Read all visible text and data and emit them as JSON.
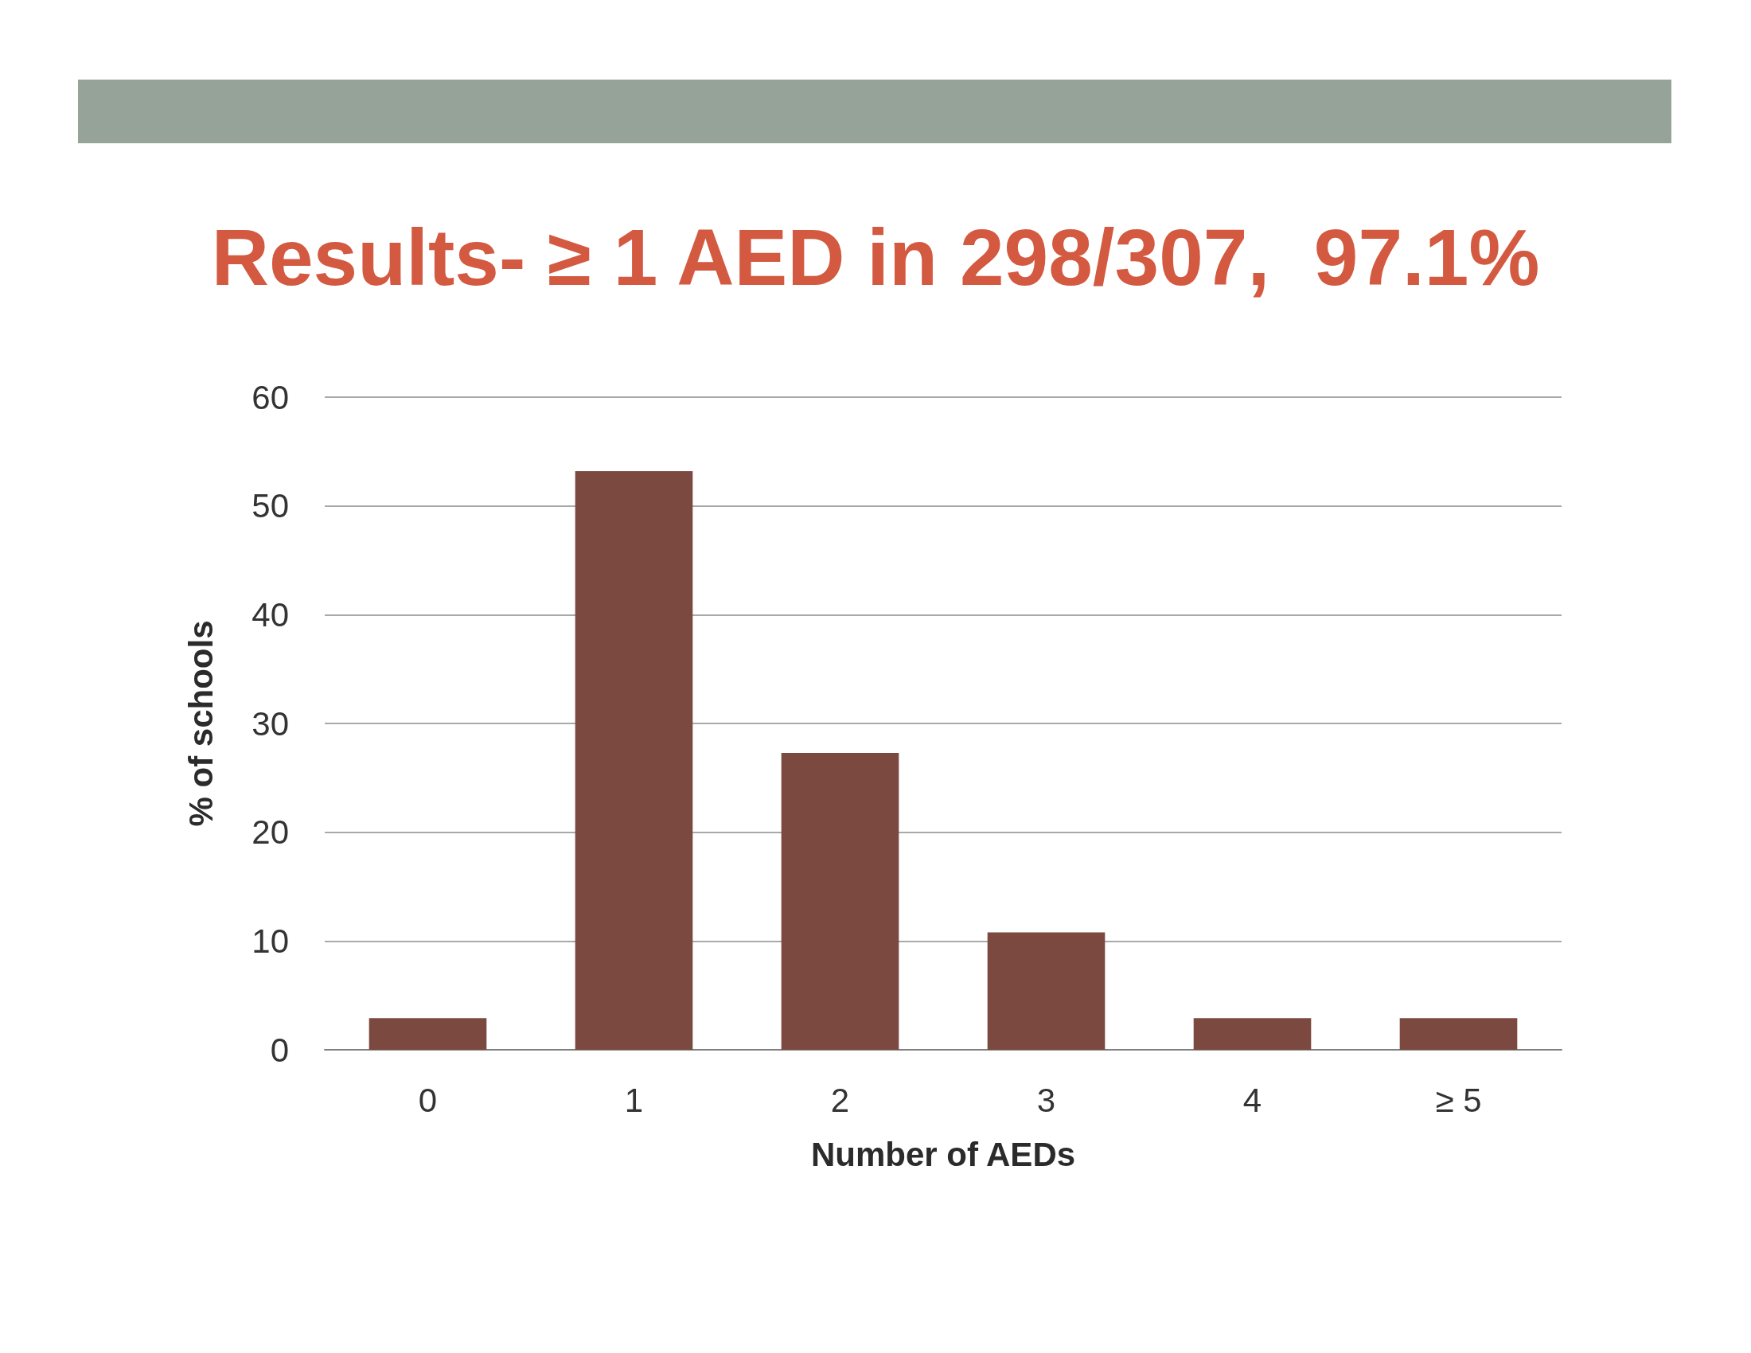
{
  "chart_data": {
    "type": "bar",
    "title": "Results- ≥ 1 AED in 298/307,  97.1%",
    "xlabel": "Number of AEDs",
    "ylabel": "% of schools",
    "categories": [
      "0",
      "1",
      "2",
      "3",
      "4",
      "≥ 5"
    ],
    "values": [
      2.9,
      53.2,
      27.3,
      10.8,
      2.9,
      2.9
    ],
    "color": "#7b4940",
    "ylim": [
      0,
      60
    ],
    "yticks": [
      0,
      10,
      20,
      30,
      40,
      50,
      60
    ],
    "grid": "y"
  }
}
